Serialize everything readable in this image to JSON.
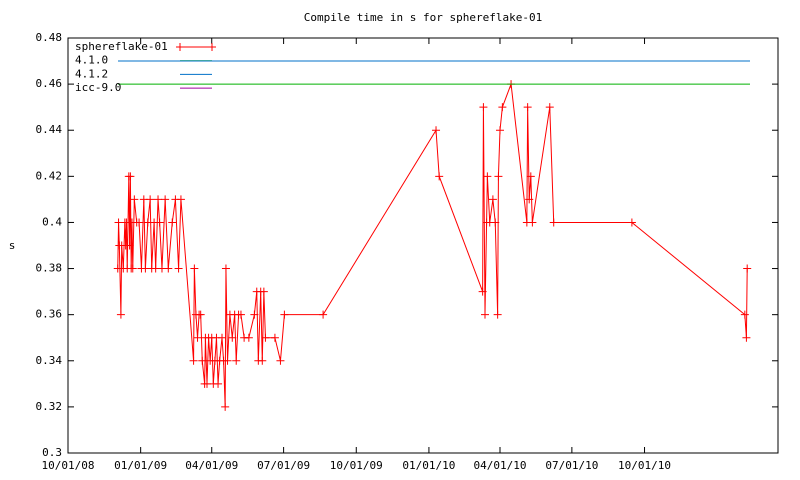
{
  "chart_data": {
    "type": "line",
    "title": "Compile time in s for sphereflake-01",
    "ylabel": "s",
    "ylim": [
      0.3,
      0.48
    ],
    "yticks": [
      0.3,
      0.32,
      0.34,
      0.36,
      0.38,
      0.4,
      0.42,
      0.44,
      0.46,
      0.48
    ],
    "xlim": [
      "2008-10-01",
      "2011-03-19"
    ],
    "xticks": [
      {
        "value": "2008-10-01",
        "label": "10/01/08"
      },
      {
        "value": "2009-01-01",
        "label": "01/01/09"
      },
      {
        "value": "2009-04-01",
        "label": "04/01/09"
      },
      {
        "value": "2009-07-01",
        "label": "07/01/09"
      },
      {
        "value": "2009-10-01",
        "label": "10/01/09"
      },
      {
        "value": "2010-01-01",
        "label": "01/01/10"
      },
      {
        "value": "2010-04-01",
        "label": "04/01/10"
      },
      {
        "value": "2010-07-01",
        "label": "07/01/10"
      },
      {
        "value": "2010-10-01",
        "label": "10/01/10"
      }
    ],
    "legend": "top-left",
    "x": [
      "2008-12-03",
      "2008-12-04",
      "2008-12-05",
      "2008-12-07",
      "2008-12-08",
      "2008-12-10",
      "2008-12-12",
      "2008-12-13",
      "2008-12-14",
      "2008-12-15",
      "2008-12-17",
      "2008-12-18",
      "2008-12-19",
      "2008-12-20",
      "2008-12-21",
      "2008-12-22",
      "2008-12-24",
      "2008-12-27",
      "2008-12-30",
      "2009-01-02",
      "2009-01-05",
      "2009-01-07",
      "2009-01-10",
      "2009-01-13",
      "2009-01-15",
      "2009-01-18",
      "2009-01-20",
      "2009-01-23",
      "2009-01-25",
      "2009-01-28",
      "2009-02-01",
      "2009-02-05",
      "2009-02-10",
      "2009-02-14",
      "2009-02-18",
      "2009-02-21",
      "2009-03-09",
      "2009-03-10",
      "2009-03-12",
      "2009-03-14",
      "2009-03-16",
      "2009-03-18",
      "2009-03-20",
      "2009-03-23",
      "2009-03-24",
      "2009-03-26",
      "2009-03-28",
      "2009-03-30",
      "2009-04-01",
      "2009-04-03",
      "2009-04-05",
      "2009-04-07",
      "2009-04-09",
      "2009-04-11",
      "2009-04-14",
      "2009-04-16",
      "2009-04-18",
      "2009-04-19",
      "2009-04-21",
      "2009-04-24",
      "2009-04-27",
      "2009-04-30",
      "2009-05-02",
      "2009-05-05",
      "2009-05-08",
      "2009-05-12",
      "2009-05-18",
      "2009-05-25",
      "2009-05-28",
      "2009-05-30",
      "2009-06-02",
      "2009-06-04",
      "2009-06-06",
      "2009-06-08",
      "2009-06-20",
      "2009-06-27",
      "2009-07-02",
      "2009-08-20",
      "2010-01-10",
      "2010-01-14",
      "2010-03-10",
      "2010-03-11",
      "2010-03-13",
      "2010-03-15",
      "2010-03-16",
      "2010-03-19",
      "2010-03-23",
      "2010-03-26",
      "2010-03-29",
      "2010-03-30",
      "2010-04-01",
      "2010-04-04",
      "2010-04-15",
      "2010-05-05",
      "2010-05-06",
      "2010-05-08",
      "2010-05-10",
      "2010-05-12",
      "2010-06-03",
      "2010-06-08",
      "2010-09-15",
      "2011-02-05",
      "2011-02-07",
      "2011-02-08"
    ],
    "series": [
      {
        "name": "sphereflake-01",
        "color": "#ff0000",
        "values": [
          0.38,
          0.4,
          0.39,
          0.36,
          0.39,
          0.38,
          0.4,
          0.39,
          0.4,
          0.38,
          0.42,
          0.39,
          0.42,
          0.38,
          0.4,
          0.38,
          0.41,
          0.4,
          0.4,
          0.38,
          0.41,
          0.38,
          0.4,
          0.41,
          0.38,
          0.4,
          0.38,
          0.41,
          0.4,
          0.38,
          0.41,
          0.38,
          0.4,
          0.41,
          0.38,
          0.41,
          0.34,
          0.38,
          0.36,
          0.35,
          0.36,
          0.36,
          0.34,
          0.33,
          0.35,
          0.33,
          0.35,
          0.34,
          0.35,
          0.33,
          0.34,
          0.35,
          0.33,
          0.34,
          0.35,
          0.34,
          0.32,
          0.38,
          0.34,
          0.36,
          0.35,
          0.36,
          0.34,
          0.36,
          0.36,
          0.35,
          0.35,
          0.36,
          0.37,
          0.34,
          0.37,
          0.34,
          0.37,
          0.35,
          0.35,
          0.34,
          0.36,
          0.36,
          0.44,
          0.42,
          0.37,
          0.45,
          0.36,
          0.4,
          0.42,
          0.4,
          0.41,
          0.4,
          0.36,
          0.42,
          0.44,
          0.45,
          0.46,
          0.4,
          0.45,
          0.41,
          0.42,
          0.4,
          0.45,
          0.4,
          0.4,
          0.36,
          0.35,
          0.38
        ]
      }
    ],
    "reference_lines": [
      {
        "name": "4.1.0",
        "color": "#00b000",
        "value": 0.46
      },
      {
        "name": "4.1.2",
        "color": "#0070c8",
        "value": 0.47
      },
      {
        "name": "icc-9.0",
        "color": "#a000a0",
        "value": null
      }
    ]
  }
}
